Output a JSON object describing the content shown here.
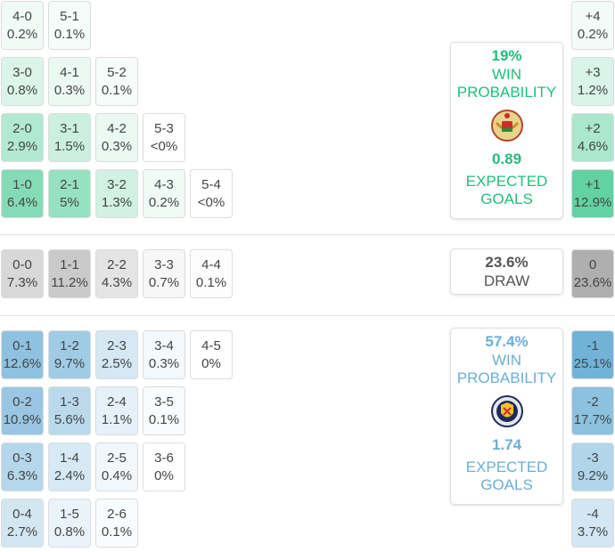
{
  "colors": {
    "home_accent": "#1fbf7a",
    "away_accent": "#6aaed6",
    "draw_dark": "#a8a8a8",
    "draw_light": "#dcdcdc"
  },
  "chart_data": {
    "type": "heatmap",
    "description_free": true,
    "home_wins": [
      {
        "score": "4-0",
        "pct": "0.2%",
        "p": 0.2
      },
      {
        "score": "5-1",
        "pct": "0.1%",
        "p": 0.1
      },
      {
        "score": "3-0",
        "pct": "0.8%",
        "p": 0.8
      },
      {
        "score": "4-1",
        "pct": "0.3%",
        "p": 0.3
      },
      {
        "score": "5-2",
        "pct": "0.1%",
        "p": 0.1
      },
      {
        "score": "2-0",
        "pct": "2.9%",
        "p": 2.9
      },
      {
        "score": "3-1",
        "pct": "1.5%",
        "p": 1.5
      },
      {
        "score": "4-2",
        "pct": "0.3%",
        "p": 0.3
      },
      {
        "score": "5-3",
        "pct": "<0%",
        "p": 0.0
      },
      {
        "score": "1-0",
        "pct": "6.4%",
        "p": 6.4
      },
      {
        "score": "2-1",
        "pct": "5%",
        "p": 5.0
      },
      {
        "score": "3-2",
        "pct": "1.3%",
        "p": 1.3
      },
      {
        "score": "4-3",
        "pct": "0.2%",
        "p": 0.2
      },
      {
        "score": "5-4",
        "pct": "<0%",
        "p": 0.0
      }
    ],
    "draws": [
      {
        "score": "0-0",
        "pct": "7.3%",
        "p": 7.3
      },
      {
        "score": "1-1",
        "pct": "11.2%",
        "p": 11.2
      },
      {
        "score": "2-2",
        "pct": "4.3%",
        "p": 4.3
      },
      {
        "score": "3-3",
        "pct": "0.7%",
        "p": 0.7
      },
      {
        "score": "4-4",
        "pct": "0.1%",
        "p": 0.1
      }
    ],
    "away_wins": [
      {
        "score": "0-1",
        "pct": "12.6%",
        "p": 12.6
      },
      {
        "score": "1-2",
        "pct": "9.7%",
        "p": 9.7
      },
      {
        "score": "2-3",
        "pct": "2.5%",
        "p": 2.5
      },
      {
        "score": "3-4",
        "pct": "0.3%",
        "p": 0.3
      },
      {
        "score": "4-5",
        "pct": "0%",
        "p": 0.0
      },
      {
        "score": "0-2",
        "pct": "10.9%",
        "p": 10.9
      },
      {
        "score": "1-3",
        "pct": "5.6%",
        "p": 5.6
      },
      {
        "score": "2-4",
        "pct": "1.1%",
        "p": 1.1
      },
      {
        "score": "3-5",
        "pct": "0.1%",
        "p": 0.1
      },
      {
        "score": "0-3",
        "pct": "6.3%",
        "p": 6.3
      },
      {
        "score": "1-4",
        "pct": "2.4%",
        "p": 2.4
      },
      {
        "score": "2-5",
        "pct": "0.4%",
        "p": 0.4
      },
      {
        "score": "3-6",
        "pct": "0%",
        "p": 0.0
      },
      {
        "score": "0-4",
        "pct": "2.7%",
        "p": 2.7
      },
      {
        "score": "1-5",
        "pct": "0.8%",
        "p": 0.8
      },
      {
        "score": "2-6",
        "pct": "0.1%",
        "p": 0.1
      }
    ],
    "margins": [
      {
        "margin": "+4",
        "pct": "0.2%",
        "p": 0.2
      },
      {
        "margin": "+3",
        "pct": "1.2%",
        "p": 1.2
      },
      {
        "margin": "+2",
        "pct": "4.6%",
        "p": 4.6
      },
      {
        "margin": "+1",
        "pct": "12.9%",
        "p": 12.9
      },
      {
        "margin": "0",
        "pct": "23.6%",
        "p": 23.6
      },
      {
        "margin": "-1",
        "pct": "25.1%",
        "p": 25.1
      },
      {
        "margin": "-2",
        "pct": "17.7%",
        "p": 17.7
      },
      {
        "margin": "-3",
        "pct": "9.2%",
        "p": 9.2
      },
      {
        "margin": "-4",
        "pct": "3.7%",
        "p": 3.7
      }
    ]
  },
  "home_panel": {
    "win_pct": "19%",
    "win_label_1": "WIN",
    "win_label_2": "PROBABILITY",
    "crest_icon": "belarus-crest-icon",
    "xg": "0.89",
    "xg_label_1": "EXPECTED",
    "xg_label_2": "GOALS"
  },
  "draw_panel": {
    "pct": "23.6%",
    "label": "DRAW"
  },
  "away_panel": {
    "win_pct": "57.4%",
    "win_label_1": "WIN",
    "win_label_2": "PROBABILITY",
    "crest_icon": "scotland-crest-icon",
    "xg": "1.74",
    "xg_label_1": "EXPECTED",
    "xg_label_2": "GOALS"
  }
}
